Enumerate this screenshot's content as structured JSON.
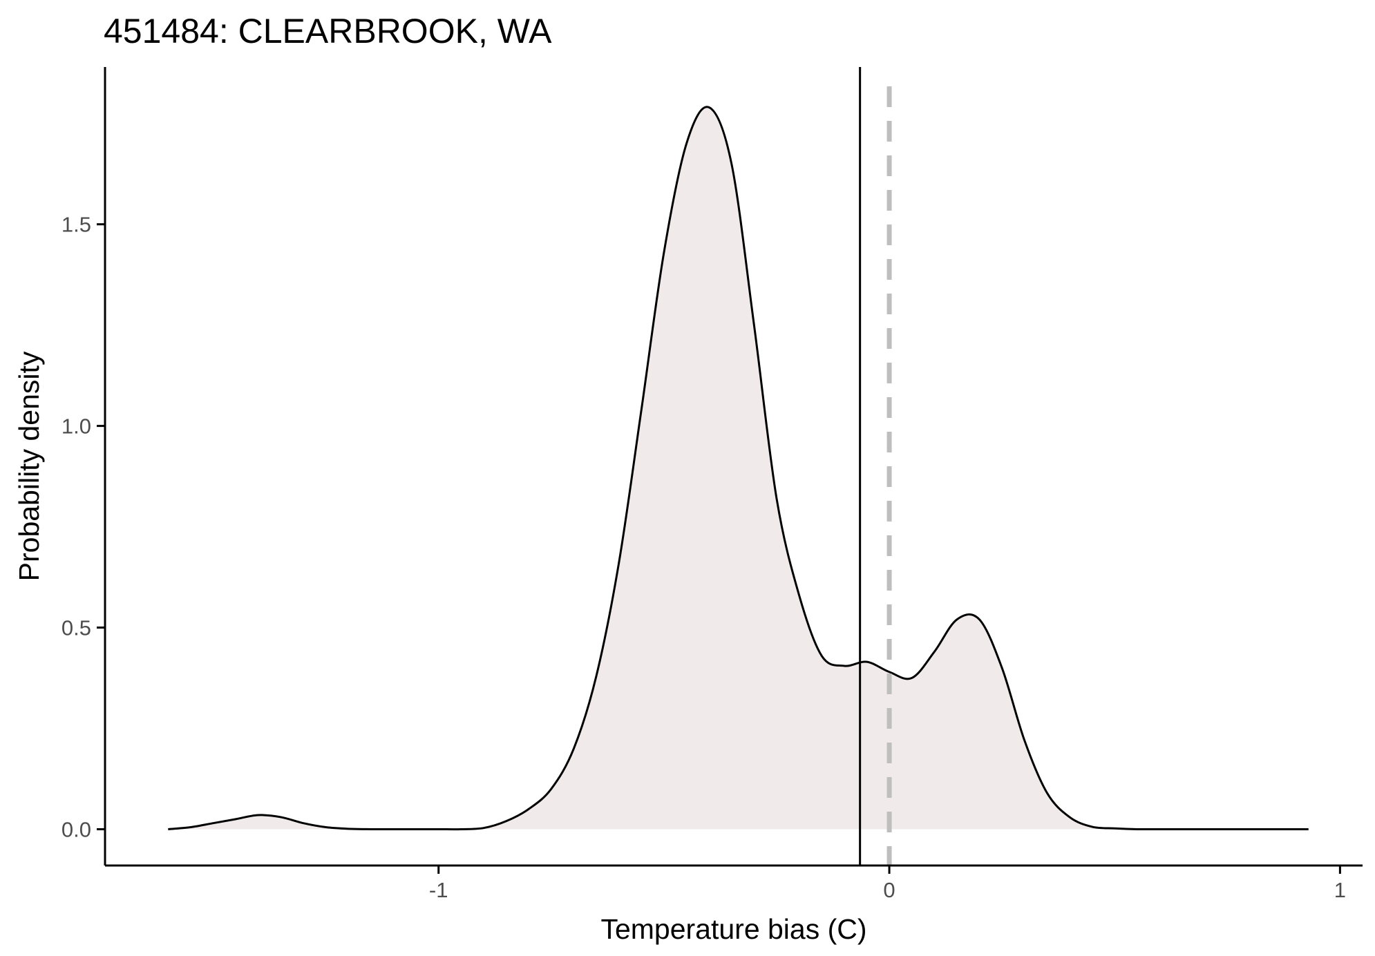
{
  "chart_data": {
    "type": "area",
    "title": "451484: CLEARBROOK, WA",
    "xlabel": "Temperature bias (C)",
    "ylabel": "Probability density",
    "xlim": [
      -1.74,
      1.05
    ],
    "ylim": [
      -0.09,
      1.89
    ],
    "x_ticks": [
      -1,
      0,
      1
    ],
    "x_tick_labels": [
      "-1",
      "0",
      "1"
    ],
    "y_ticks": [
      0.0,
      0.5,
      1.0,
      1.5
    ],
    "y_tick_labels": [
      "0.0",
      "0.5",
      "1.0",
      "1.5"
    ],
    "grid": false,
    "legend": "none",
    "series": [
      {
        "x": [
          -1.6,
          -1.55,
          -1.5,
          -1.45,
          -1.4,
          -1.35,
          -1.3,
          -1.25,
          -1.2,
          -1.15,
          -1.1,
          -1.05,
          -1.0,
          -0.95,
          -0.9,
          -0.85,
          -0.8,
          -0.75,
          -0.7,
          -0.65,
          -0.6,
          -0.55,
          -0.5,
          -0.45,
          -0.4,
          -0.35,
          -0.3,
          -0.25,
          -0.2,
          -0.15,
          -0.1,
          -0.05,
          0.0,
          0.05,
          0.1,
          0.15,
          0.2,
          0.25,
          0.3,
          0.35,
          0.4,
          0.45,
          0.5,
          0.55,
          0.6,
          0.65,
          0.7,
          0.75,
          0.8,
          0.85,
          0.9,
          0.93
        ],
        "y": [
          0.0,
          0.005,
          0.015,
          0.025,
          0.035,
          0.03,
          0.015,
          0.005,
          0.001,
          0.0,
          0.0,
          0.0,
          0.0,
          0.0,
          0.003,
          0.02,
          0.05,
          0.1,
          0.2,
          0.38,
          0.66,
          1.04,
          1.43,
          1.7,
          1.79,
          1.65,
          1.25,
          0.82,
          0.58,
          0.43,
          0.405,
          0.415,
          0.39,
          0.375,
          0.44,
          0.52,
          0.52,
          0.4,
          0.22,
          0.09,
          0.03,
          0.006,
          0.002,
          0.0,
          0.0,
          0.0,
          0.0,
          0.0,
          0.0,
          0.0,
          0.0,
          0.0
        ]
      }
    ],
    "reference_lines": [
      {
        "x": -0.065,
        "style": "solid",
        "color": "#000000"
      },
      {
        "x": 0.0,
        "style": "dashed",
        "color": "#bebebe"
      }
    ],
    "colors": {
      "fill": "#f0ebea",
      "line": "#000000",
      "axis": "#000000",
      "tick_label": "#4d4d4d"
    }
  }
}
